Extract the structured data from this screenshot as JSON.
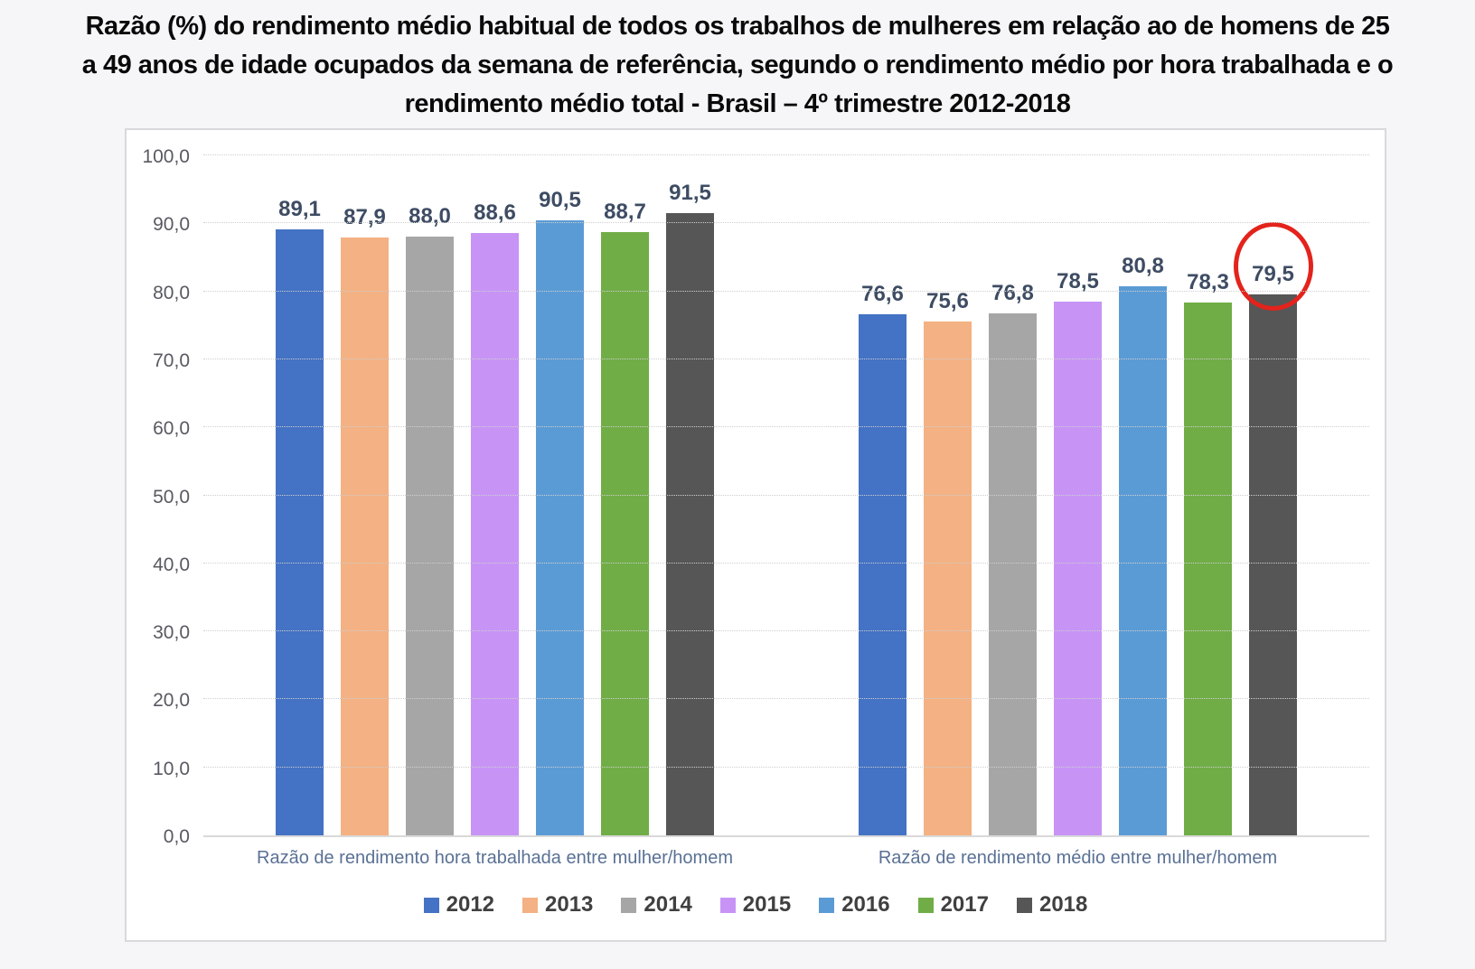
{
  "title": {
    "lines": [
      "Razão (%) do rendimento médio habitual de todos os trabalhos de mulheres em relação ao de homens de 25",
      "a 49 anos de idade ocupados da semana de referência, segundo o rendimento médio por hora trabalhada e o",
      "rendimento médio total - Brasil – 4º trimestre 2012-2018"
    ]
  },
  "chart_data": {
    "type": "bar",
    "categories": [
      "Razão de rendimento hora trabalhada entre mulher/homem",
      "Razão de rendimento médio entre mulher/homem"
    ],
    "series": [
      {
        "name": "2012",
        "color": "#4472C4",
        "values": [
          89.1,
          76.6
        ]
      },
      {
        "name": "2013",
        "color": "#F4B183",
        "values": [
          87.9,
          75.6
        ]
      },
      {
        "name": "2014",
        "color": "#A6A6A6",
        "values": [
          88.0,
          76.8
        ]
      },
      {
        "name": "2015",
        "color": "#C794F6",
        "values": [
          88.6,
          78.5
        ]
      },
      {
        "name": "2016",
        "color": "#5B9BD5",
        "values": [
          90.5,
          80.8
        ]
      },
      {
        "name": "2017",
        "color": "#70AD47",
        "values": [
          88.7,
          78.3
        ]
      },
      {
        "name": "2018",
        "color": "#565656",
        "values": [
          91.5,
          79.5
        ]
      }
    ],
    "data_label_format": "comma-decimal-1",
    "ylim": [
      0,
      100
    ],
    "ytick_step": 10,
    "ytick_labels": [
      "0,0",
      "10,0",
      "20,0",
      "30,0",
      "40,0",
      "50,0",
      "60,0",
      "70,0",
      "80,0",
      "90,0",
      "100,0"
    ],
    "grid": "horizontal-dotted",
    "legend_position": "bottom",
    "legend_entries": [
      "2012",
      "2013",
      "2014",
      "2015",
      "2016",
      "2017",
      "2018"
    ],
    "annotation": {
      "type": "circle",
      "series": "2018",
      "category_index": 1,
      "value_label": "79,5",
      "color": "#e3231c"
    }
  }
}
